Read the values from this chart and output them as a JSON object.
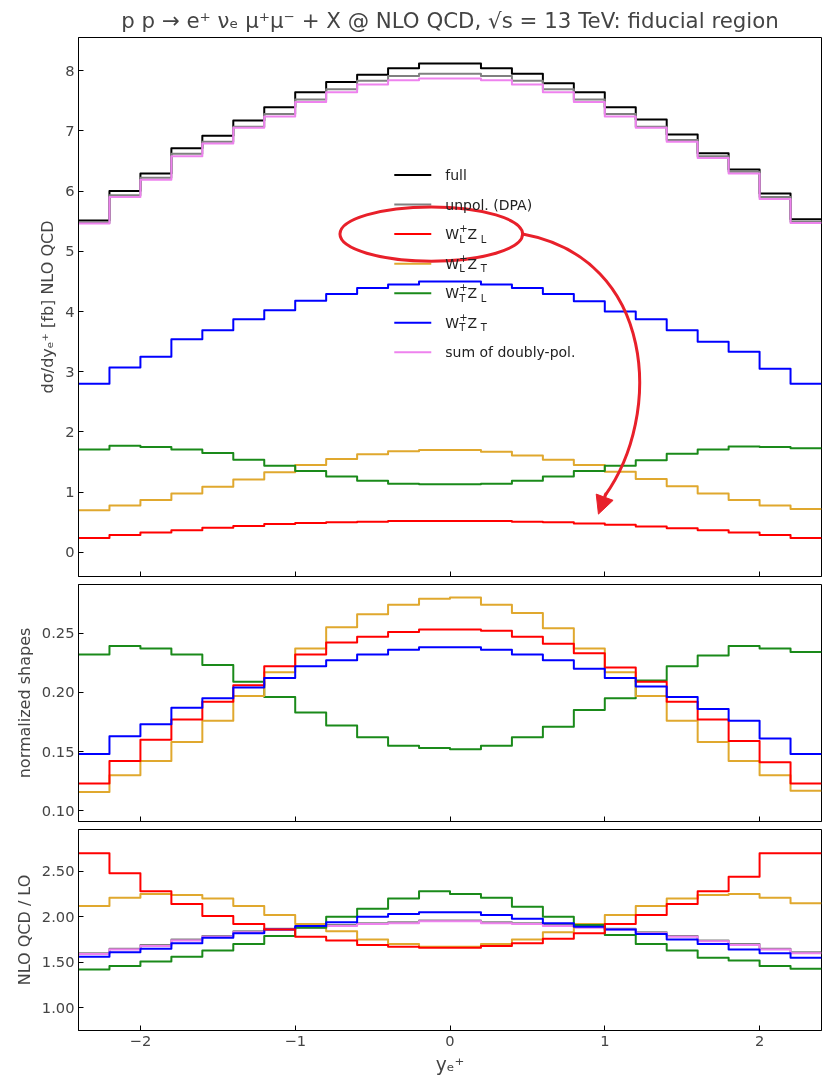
{
  "chart_data": [
    {
      "type": "step",
      "title": "p p → e⁺ νₑ μ⁺μ⁻ + X @ NLO QCD, √s = 13 TeV: fiducial region",
      "ylabel": "dσ/dyₑ⁺ [fb] NLO QCD",
      "x": [
        -2.4,
        -2.2,
        -2.0,
        -1.8,
        -1.6,
        -1.4,
        -1.2,
        -1.0,
        -0.8,
        -0.6,
        -0.4,
        -0.2,
        0.0,
        0.2,
        0.4,
        0.6,
        0.8,
        1.0,
        1.2,
        1.4,
        1.6,
        1.8,
        2.0,
        2.2,
        2.4
      ],
      "xlim": [
        -2.4,
        2.4
      ],
      "xticks": [
        {
          "value": -2,
          "label": null
        },
        {
          "value": -1,
          "label": null
        },
        {
          "value": 0,
          "label": null
        },
        {
          "value": 1,
          "label": null
        },
        {
          "value": 2,
          "label": null
        }
      ],
      "ylim": [
        -0.4,
        8.55
      ],
      "yticks": [
        0,
        1,
        2,
        3,
        4,
        5,
        6,
        7,
        8
      ],
      "tick_labels": "y",
      "grid": false,
      "legend": "center",
      "series": [
        {
          "name": "full",
          "color": "#000000",
          "values": [
            5.51,
            6.0,
            6.29,
            6.71,
            6.92,
            7.17,
            7.39,
            7.64,
            7.81,
            7.93,
            8.04,
            8.12,
            8.12,
            8.04,
            7.95,
            7.79,
            7.64,
            7.39,
            7.19,
            6.94,
            6.63,
            6.36,
            5.96,
            5.53,
            5.53
          ]
        },
        {
          "name": "unpol. (DPA)",
          "color": "#808080",
          "values": [
            5.47,
            5.93,
            6.22,
            6.62,
            6.82,
            7.07,
            7.28,
            7.52,
            7.69,
            7.83,
            7.91,
            7.95,
            7.95,
            7.91,
            7.83,
            7.69,
            7.52,
            7.28,
            7.07,
            6.85,
            6.58,
            6.32,
            5.9,
            5.49,
            5.49
          ]
        },
        {
          "name": "W$^{+}$$_{L}$ Z$_{L}$",
          "color": "#ff0000",
          "values": [
            0.24,
            0.29,
            0.33,
            0.37,
            0.41,
            0.44,
            0.47,
            0.49,
            0.5,
            0.51,
            0.52,
            0.52,
            0.52,
            0.52,
            0.51,
            0.5,
            0.48,
            0.46,
            0.43,
            0.4,
            0.37,
            0.33,
            0.29,
            0.24,
            0.24
          ]
        },
        {
          "name": "W$^{+}$$_{L}$ Z$_{T}$",
          "color": "#e0a82e",
          "values": [
            0.7,
            0.78,
            0.87,
            0.98,
            1.09,
            1.21,
            1.33,
            1.45,
            1.55,
            1.63,
            1.68,
            1.7,
            1.7,
            1.67,
            1.61,
            1.54,
            1.45,
            1.34,
            1.22,
            1.1,
            0.98,
            0.87,
            0.78,
            0.72,
            0.72
          ]
        },
        {
          "name": "W$^{+}$$_{T}$ Z$_{L}$",
          "color": "#1a8a1a",
          "values": [
            1.71,
            1.77,
            1.75,
            1.71,
            1.65,
            1.54,
            1.44,
            1.35,
            1.26,
            1.19,
            1.14,
            1.13,
            1.13,
            1.14,
            1.19,
            1.26,
            1.35,
            1.44,
            1.53,
            1.64,
            1.71,
            1.76,
            1.75,
            1.73,
            1.73
          ]
        },
        {
          "name": "W$^{+}$$_{T}$ Z$_{T}$",
          "color": "#0000ff",
          "values": [
            2.8,
            3.07,
            3.25,
            3.54,
            3.69,
            3.87,
            4.02,
            4.18,
            4.29,
            4.39,
            4.45,
            4.5,
            4.5,
            4.45,
            4.39,
            4.29,
            4.17,
            4.0,
            3.87,
            3.69,
            3.5,
            3.33,
            3.05,
            2.8,
            2.8
          ]
        },
        {
          "name": "sum of doubly-pol.",
          "color": "#ee82ee",
          "values": [
            5.46,
            5.9,
            6.19,
            6.58,
            6.79,
            7.05,
            7.24,
            7.48,
            7.64,
            7.77,
            7.84,
            7.87,
            7.87,
            7.84,
            7.77,
            7.64,
            7.48,
            7.24,
            7.05,
            6.82,
            6.55,
            6.29,
            5.87,
            5.47,
            5.47
          ]
        }
      ]
    },
    {
      "type": "step",
      "ylabel": "normalized shapes",
      "x": [
        -2.4,
        -2.2,
        -2.0,
        -1.8,
        -1.6,
        -1.4,
        -1.2,
        -1.0,
        -0.8,
        -0.6,
        -0.4,
        -0.2,
        0.0,
        0.2,
        0.4,
        0.6,
        0.8,
        1.0,
        1.2,
        1.4,
        1.6,
        1.8,
        2.0,
        2.2,
        2.4
      ],
      "xlim": [
        -2.4,
        2.4
      ],
      "xticks": [
        {
          "value": -2,
          "label": null
        },
        {
          "value": -1,
          "label": null
        },
        {
          "value": 0,
          "label": null
        },
        {
          "value": 1,
          "label": null
        },
        {
          "value": 2,
          "label": null
        }
      ],
      "ylim": [
        0.091,
        0.291
      ],
      "yticks": [
        {
          "value": 0.1,
          "label": "0.10"
        },
        0.15,
        {
          "value": 0.2,
          "label": "0.20"
        },
        0.25
      ],
      "tick_labels": "y",
      "grid": false,
      "series": [
        {
          "color": "#1a8a1a",
          "values": [
            0.232,
            0.239,
            0.237,
            0.232,
            0.223,
            0.209,
            0.196,
            0.183,
            0.172,
            0.162,
            0.155,
            0.153,
            0.152,
            0.155,
            0.162,
            0.171,
            0.185,
            0.195,
            0.21,
            0.222,
            0.231,
            0.239,
            0.237,
            0.234,
            0.234
          ]
        },
        {
          "color": "#e0a82e",
          "values": [
            0.116,
            0.13,
            0.142,
            0.158,
            0.176,
            0.197,
            0.217,
            0.237,
            0.255,
            0.266,
            0.274,
            0.279,
            0.28,
            0.274,
            0.267,
            0.254,
            0.237,
            0.217,
            0.197,
            0.176,
            0.158,
            0.142,
            0.13,
            0.117,
            0.117
          ]
        },
        {
          "color": "#ff0000",
          "values": [
            0.123,
            0.142,
            0.16,
            0.177,
            0.192,
            0.206,
            0.222,
            0.232,
            0.242,
            0.247,
            0.251,
            0.253,
            0.253,
            0.252,
            0.247,
            0.241,
            0.233,
            0.221,
            0.209,
            0.192,
            0.177,
            0.159,
            0.141,
            0.123,
            0.123
          ]
        },
        {
          "color": "#0000ff",
          "values": [
            0.148,
            0.163,
            0.173,
            0.187,
            0.195,
            0.204,
            0.212,
            0.222,
            0.227,
            0.232,
            0.236,
            0.238,
            0.238,
            0.236,
            0.232,
            0.227,
            0.22,
            0.212,
            0.205,
            0.196,
            0.186,
            0.176,
            0.161,
            0.148,
            0.148
          ]
        }
      ]
    },
    {
      "type": "step",
      "xlabel": "yₑ⁺",
      "ylabel": "NLO QCD / LO",
      "x": [
        -2.4,
        -2.2,
        -2.0,
        -1.8,
        -1.6,
        -1.4,
        -1.2,
        -1.0,
        -0.8,
        -0.6,
        -0.4,
        -0.2,
        0.0,
        0.2,
        0.4,
        0.6,
        0.8,
        1.0,
        1.2,
        1.4,
        1.6,
        1.8,
        2.0,
        2.2,
        2.4
      ],
      "xlim": [
        -2.4,
        2.4
      ],
      "xticks": [
        {
          "value": -2,
          "label": "−2"
        },
        {
          "value": -1,
          "label": "−1"
        },
        0,
        1,
        2
      ],
      "ylim": [
        0.75,
        2.96
      ],
      "yticks": [
        {
          "value": 1,
          "label": "1.00"
        },
        {
          "value": 1.5,
          "label": "1.50"
        },
        {
          "value": 2,
          "label": "2.00"
        },
        {
          "value": 2.5,
          "label": "2.50"
        }
      ],
      "grid": false,
      "series": [
        {
          "color": "#808080",
          "values": [
            1.6,
            1.65,
            1.69,
            1.75,
            1.79,
            1.84,
            1.87,
            1.89,
            1.91,
            1.93,
            1.94,
            1.96,
            1.96,
            1.94,
            1.93,
            1.91,
            1.89,
            1.87,
            1.83,
            1.79,
            1.74,
            1.7,
            1.65,
            1.61,
            1.61
          ]
        },
        {
          "color": "#ee82ee",
          "values": [
            1.59,
            1.64,
            1.68,
            1.74,
            1.78,
            1.83,
            1.86,
            1.88,
            1.9,
            1.92,
            1.93,
            1.95,
            1.95,
            1.93,
            1.92,
            1.9,
            1.88,
            1.86,
            1.82,
            1.78,
            1.73,
            1.69,
            1.64,
            1.6,
            1.6
          ]
        },
        {
          "color": "#e0a82e",
          "values": [
            2.12,
            2.21,
            2.25,
            2.24,
            2.2,
            2.12,
            2.02,
            1.92,
            1.84,
            1.75,
            1.7,
            1.67,
            1.67,
            1.7,
            1.75,
            1.83,
            1.92,
            2.02,
            2.12,
            2.2,
            2.24,
            2.25,
            2.21,
            2.15,
            2.15
          ]
        },
        {
          "color": "#1a8a1a",
          "values": [
            1.42,
            1.46,
            1.51,
            1.56,
            1.63,
            1.7,
            1.79,
            1.88,
            2.0,
            2.09,
            2.2,
            2.28,
            2.25,
            2.21,
            2.11,
            2.0,
            1.91,
            1.8,
            1.7,
            1.63,
            1.55,
            1.52,
            1.46,
            1.43,
            1.43
          ]
        },
        {
          "color": "#0000ff",
          "values": [
            1.56,
            1.61,
            1.65,
            1.71,
            1.77,
            1.82,
            1.86,
            1.9,
            1.94,
            2.0,
            2.03,
            2.05,
            2.05,
            2.02,
            1.98,
            1.93,
            1.89,
            1.86,
            1.81,
            1.75,
            1.7,
            1.64,
            1.6,
            1.55,
            1.55
          ]
        },
        {
          "color": "#ff0000",
          "values": [
            2.7,
            2.48,
            2.28,
            2.14,
            2.01,
            1.92,
            1.86,
            1.78,
            1.74,
            1.69,
            1.67,
            1.66,
            1.66,
            1.68,
            1.71,
            1.76,
            1.82,
            1.92,
            2.02,
            2.14,
            2.28,
            2.44,
            2.7,
            2.7,
            2.7
          ]
        }
      ]
    }
  ]
}
